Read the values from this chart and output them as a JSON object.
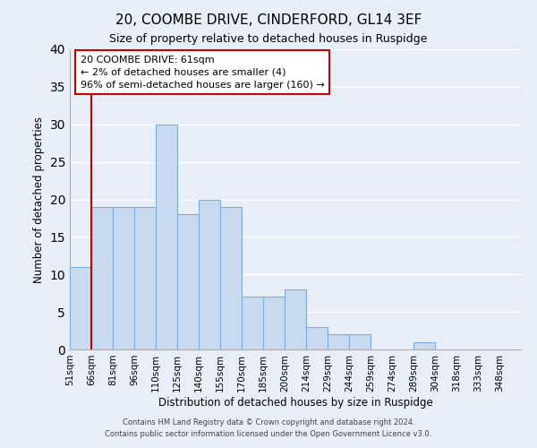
{
  "title": "20, COOMBE DRIVE, CINDERFORD, GL14 3EF",
  "subtitle": "Size of property relative to detached houses in Ruspidge",
  "xlabel": "Distribution of detached houses by size in Ruspidge",
  "ylabel": "Number of detached properties",
  "bins": [
    "51sqm",
    "66sqm",
    "81sqm",
    "96sqm",
    "110sqm",
    "125sqm",
    "140sqm",
    "155sqm",
    "170sqm",
    "185sqm",
    "200sqm",
    "214sqm",
    "229sqm",
    "244sqm",
    "259sqm",
    "274sqm",
    "289sqm",
    "304sqm",
    "318sqm",
    "333sqm",
    "348sqm"
  ],
  "counts": [
    11,
    19,
    19,
    19,
    30,
    18,
    20,
    19,
    7,
    7,
    8,
    3,
    2,
    2,
    0,
    0,
    1,
    0,
    0,
    0,
    0
  ],
  "bar_color": "#c9d9ef",
  "bar_edge_color": "#7bafd4",
  "highlight_color": "#cc0000",
  "annotation_line1": "20 COOMBE DRIVE: 61sqm",
  "annotation_line2": "← 2% of detached houses are smaller (4)",
  "annotation_line3": "96% of semi-detached houses are larger (160) →",
  "annotation_box_color": "#ffffff",
  "annotation_box_edge": "#cc0000",
  "ylim": [
    0,
    40
  ],
  "yticks": [
    0,
    5,
    10,
    15,
    20,
    25,
    30,
    35,
    40
  ],
  "footer1": "Contains HM Land Registry data © Crown copyright and database right 2024.",
  "footer2": "Contains public sector information licensed under the Open Government Licence v3.0.",
  "background_color": "#e8eef8",
  "grid_color": "#ffffff"
}
